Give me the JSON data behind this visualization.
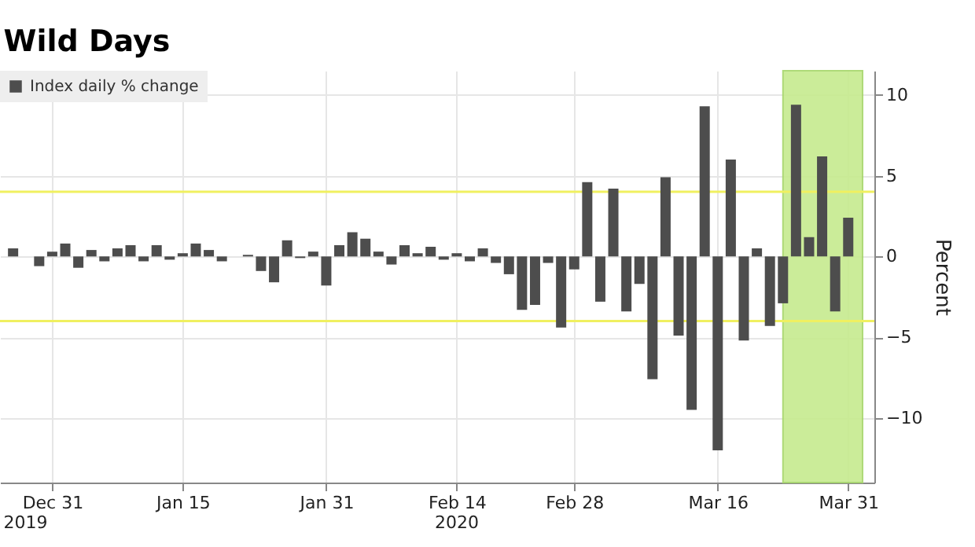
{
  "chart_data": {
    "type": "bar",
    "title": "Wild Days",
    "ylabel": "Percent",
    "categories": [
      null,
      null,
      null,
      "Dec 31",
      null,
      null,
      null,
      null,
      null,
      null,
      null,
      null,
      null,
      "Jan 15",
      null,
      null,
      null,
      null,
      null,
      null,
      null,
      null,
      null,
      null,
      "Jan 31",
      null,
      null,
      null,
      null,
      null,
      null,
      null,
      null,
      null,
      "Feb 14",
      null,
      null,
      null,
      null,
      null,
      null,
      null,
      null,
      "Feb 28",
      null,
      null,
      null,
      null,
      null,
      null,
      null,
      null,
      null,
      null,
      "Mar 16",
      null,
      null,
      null,
      null,
      null,
      null,
      null,
      null,
      null,
      "Mar 31"
    ],
    "series": [
      {
        "name": "Index daily % change",
        "color": "#4d4d4d",
        "values": [
          0.5,
          0.0,
          -0.6,
          0.3,
          0.8,
          -0.7,
          0.4,
          -0.3,
          0.5,
          0.7,
          -0.3,
          0.7,
          -0.2,
          0.2,
          0.8,
          0.4,
          -0.3,
          0.0,
          0.1,
          -0.9,
          -1.6,
          1.0,
          -0.1,
          0.3,
          -1.8,
          0.7,
          1.5,
          1.1,
          0.3,
          -0.5,
          0.7,
          0.2,
          0.6,
          -0.2,
          0.2,
          -0.3,
          0.5,
          -0.4,
          -1.1,
          -3.3,
          -3.0,
          -0.4,
          -4.4,
          -0.8,
          4.6,
          -2.8,
          4.2,
          -3.4,
          -1.7,
          -7.6,
          4.9,
          -4.9,
          -9.5,
          9.3,
          -12.0,
          6.0,
          -5.2,
          0.5,
          -4.3,
          -2.9,
          9.4,
          1.2,
          6.2,
          -3.4,
          2.4
        ]
      }
    ],
    "ylim": [
      -14,
      11.5
    ],
    "yticks": [
      -10,
      -5,
      0,
      5,
      10
    ],
    "grid": true,
    "legend": "top left",
    "ref_lines": [
      {
        "axis": "y",
        "value": 4,
        "color": "#f0f060"
      },
      {
        "axis": "y",
        "value": -4,
        "color": "#f0f060"
      }
    ],
    "annotations": [
      "2019",
      "2020"
    ]
  }
}
